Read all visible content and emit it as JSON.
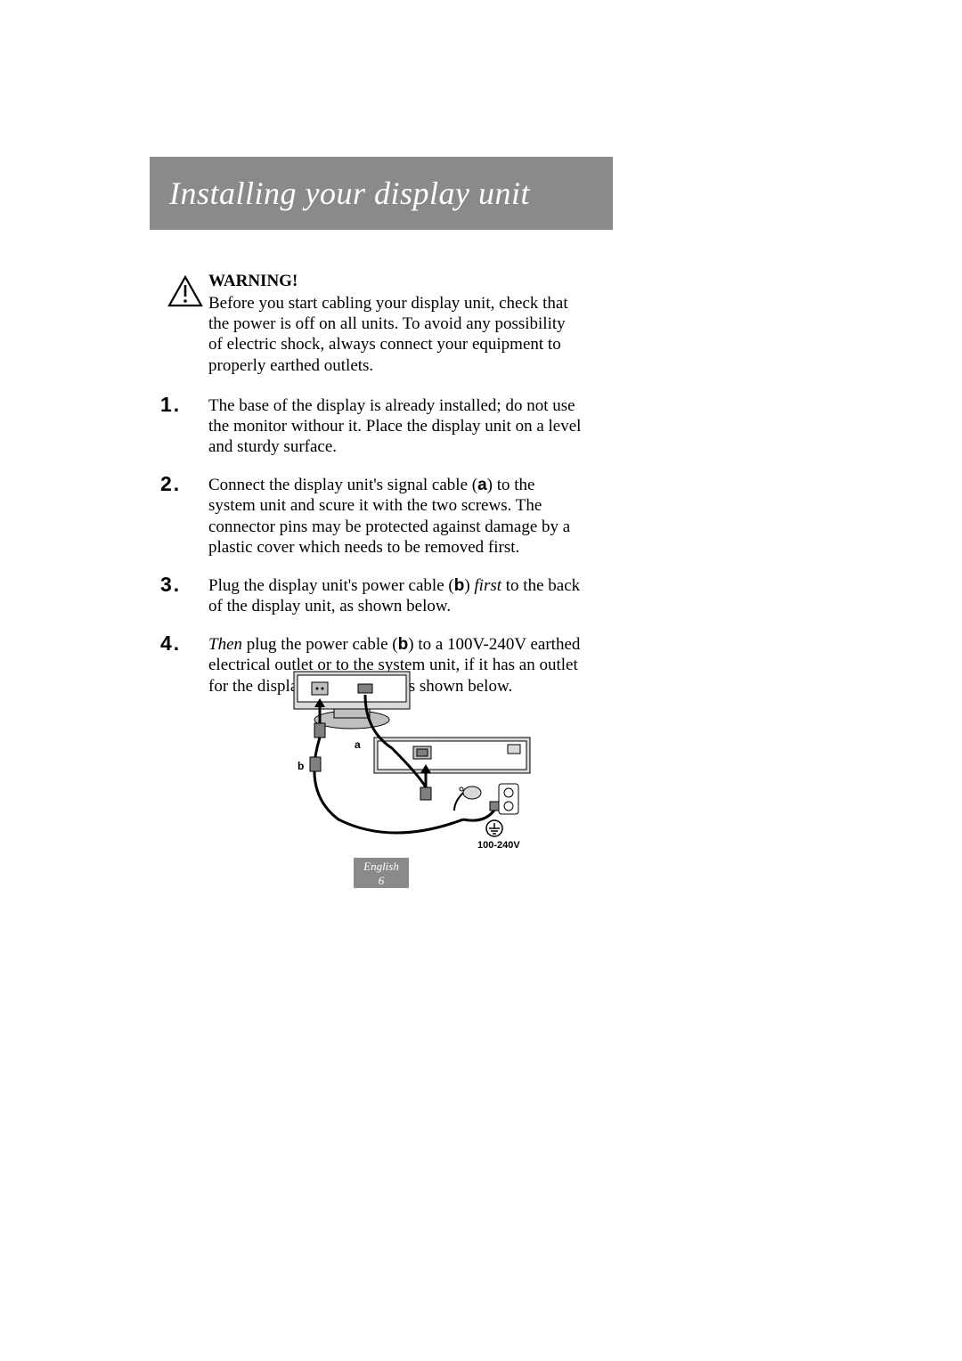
{
  "title": "Installing your display unit",
  "warning": {
    "heading": "WARNING!",
    "text": "Before you start cabling your display unit, check that the power is off on all units. To avoid any possibility of electric shock, always connect your equipment to properly earthed outlets."
  },
  "steps": [
    {
      "num": "1",
      "parts": [
        {
          "t": "The base of the display is already installed; do not use the monitor withour it. Place the display unit on a level and sturdy surface."
        }
      ]
    },
    {
      "num": "2",
      "parts": [
        {
          "t": "Connect the display unit's signal cable ("
        },
        {
          "t": "a",
          "cls": "bold-sans"
        },
        {
          "t": ") to the system unit and scure it with the two screws. The connector pins may be protected against damage by a plastic cover which needs to be removed first."
        }
      ]
    },
    {
      "num": "3",
      "parts": [
        {
          "t": "Plug the display unit's power cable ("
        },
        {
          "t": "b",
          "cls": "bold-sans"
        },
        {
          "t": ") "
        },
        {
          "t": "first",
          "cls": "italic"
        },
        {
          "t": " to the back of the display unit, as shown below."
        }
      ]
    },
    {
      "num": "4",
      "parts": [
        {
          "t": "Then",
          "cls": "italic"
        },
        {
          "t": " plug the power cable ("
        },
        {
          "t": "b",
          "cls": "bold-sans"
        },
        {
          "t": ") to a 100V-240V earthed electrical outlet or to the system unit, if it has an outlet for the display power cable, as shown below."
        }
      ]
    }
  ],
  "diagram": {
    "label_a": "a",
    "label_b": "b",
    "voltage": "100-240V",
    "colors": {
      "stroke": "#000000",
      "fill_light": "#d9d9d9",
      "fill_mid": "#bfbfbf",
      "fill_dark": "#808080"
    }
  },
  "footer": {
    "lang": "English",
    "page": "6"
  },
  "style": {
    "page_bg": "#ffffff",
    "bar_bg": "#8a8a8a",
    "bar_text_color": "#ffffff",
    "body_color": "#000000",
    "title_fontsize": 36,
    "body_fontsize": 19,
    "stepnum_fontsize": 23,
    "footer_fontsize": 13
  }
}
